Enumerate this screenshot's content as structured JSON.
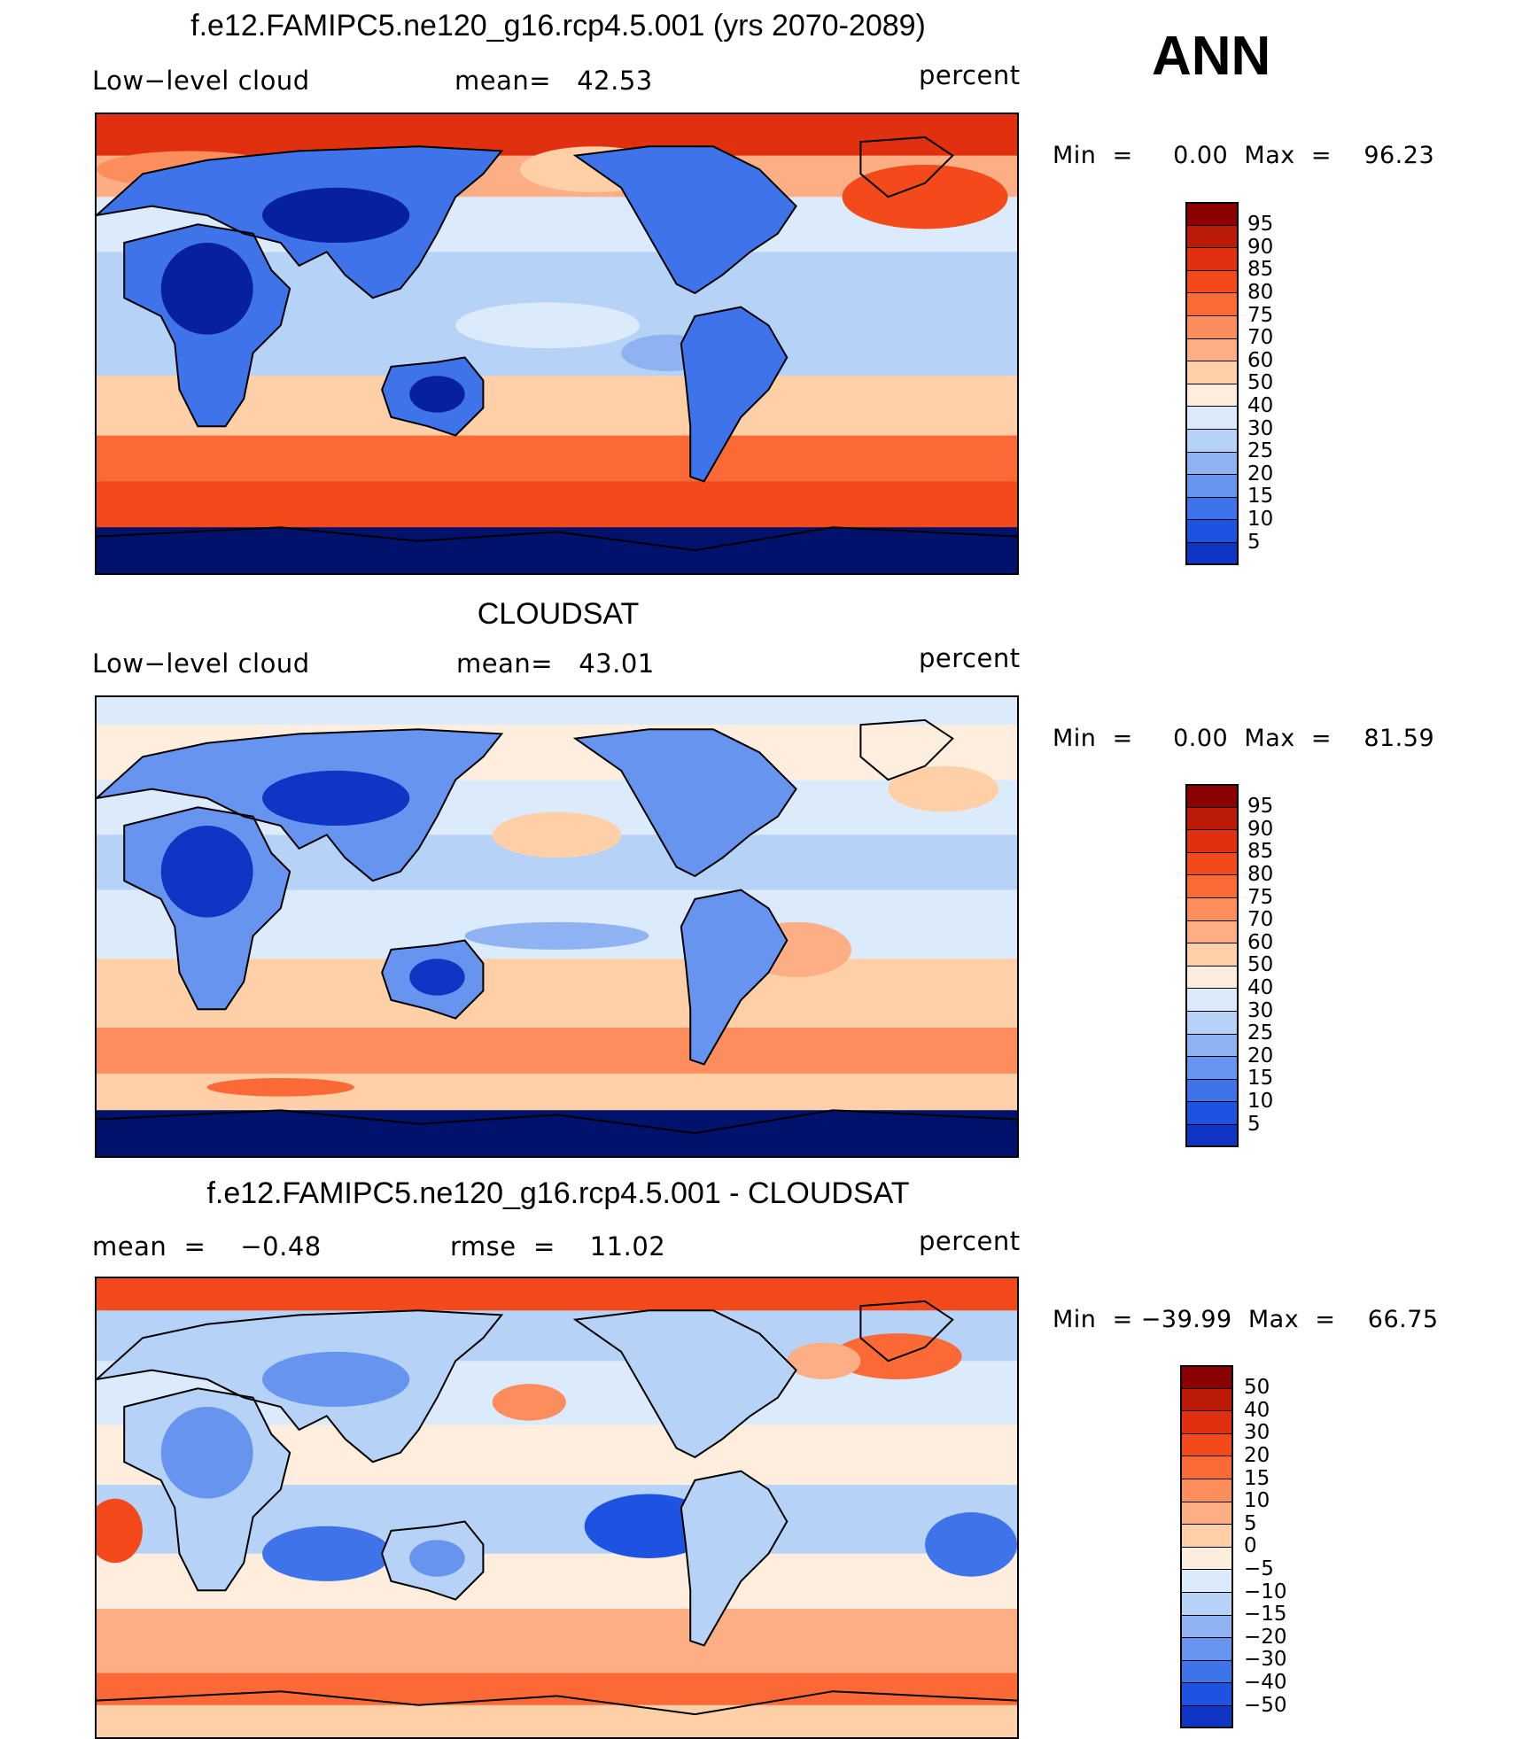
{
  "header": {
    "ann": "ANN"
  },
  "colors": {
    "pos": [
      "#ffeedd",
      "#ffcfa8",
      "#fdae84",
      "#fc8d5c",
      "#fb6a36",
      "#f44a1b",
      "#e0300f",
      "#bc1a08",
      "#8b0000"
    ],
    "neg": [
      "#dcebfb",
      "#b7d2f7",
      "#8fb3f2",
      "#6794ee",
      "#3f73ea",
      "#1e52e0",
      "#1035c4",
      "#0620a0",
      "#00126b"
    ]
  },
  "panels": [
    {
      "title": "f.e12.FAMIPC5.ne120_g16.rcp4.5.001 (yrs 2070-2089)",
      "left_label": "Low−level cloud",
      "center_label": "mean=   42.53",
      "units": "percent",
      "minmax": "Min  =     0.00  Max  =    96.23",
      "colorbar_labels": [
        "95",
        "90",
        "85",
        "80",
        "75",
        "70",
        "60",
        "50",
        "40",
        "30",
        "25",
        "20",
        "15",
        "10",
        "5"
      ]
    },
    {
      "title": "CLOUDSAT",
      "left_label": "Low−level cloud",
      "center_label": "mean=   43.01",
      "units": "percent",
      "minmax": "Min  =     0.00  Max  =    81.59",
      "colorbar_labels": [
        "95",
        "90",
        "85",
        "80",
        "75",
        "70",
        "60",
        "50",
        "40",
        "30",
        "25",
        "20",
        "15",
        "10",
        "5"
      ]
    },
    {
      "title": "f.e12.FAMIPC5.ne120_g16.rcp4.5.001 - CLOUDSAT",
      "left_label": "mean  =    −0.48",
      "center_label": "rmse  =    11.02",
      "units": "percent",
      "minmax": "Min  = −39.99  Max  =    66.75",
      "colorbar_labels": [
        "50",
        "40",
        "30",
        "20",
        "15",
        "10",
        "5",
        "0",
        "−5",
        "−10",
        "−15",
        "−20",
        "−30",
        "−40",
        "−50"
      ]
    }
  ]
}
